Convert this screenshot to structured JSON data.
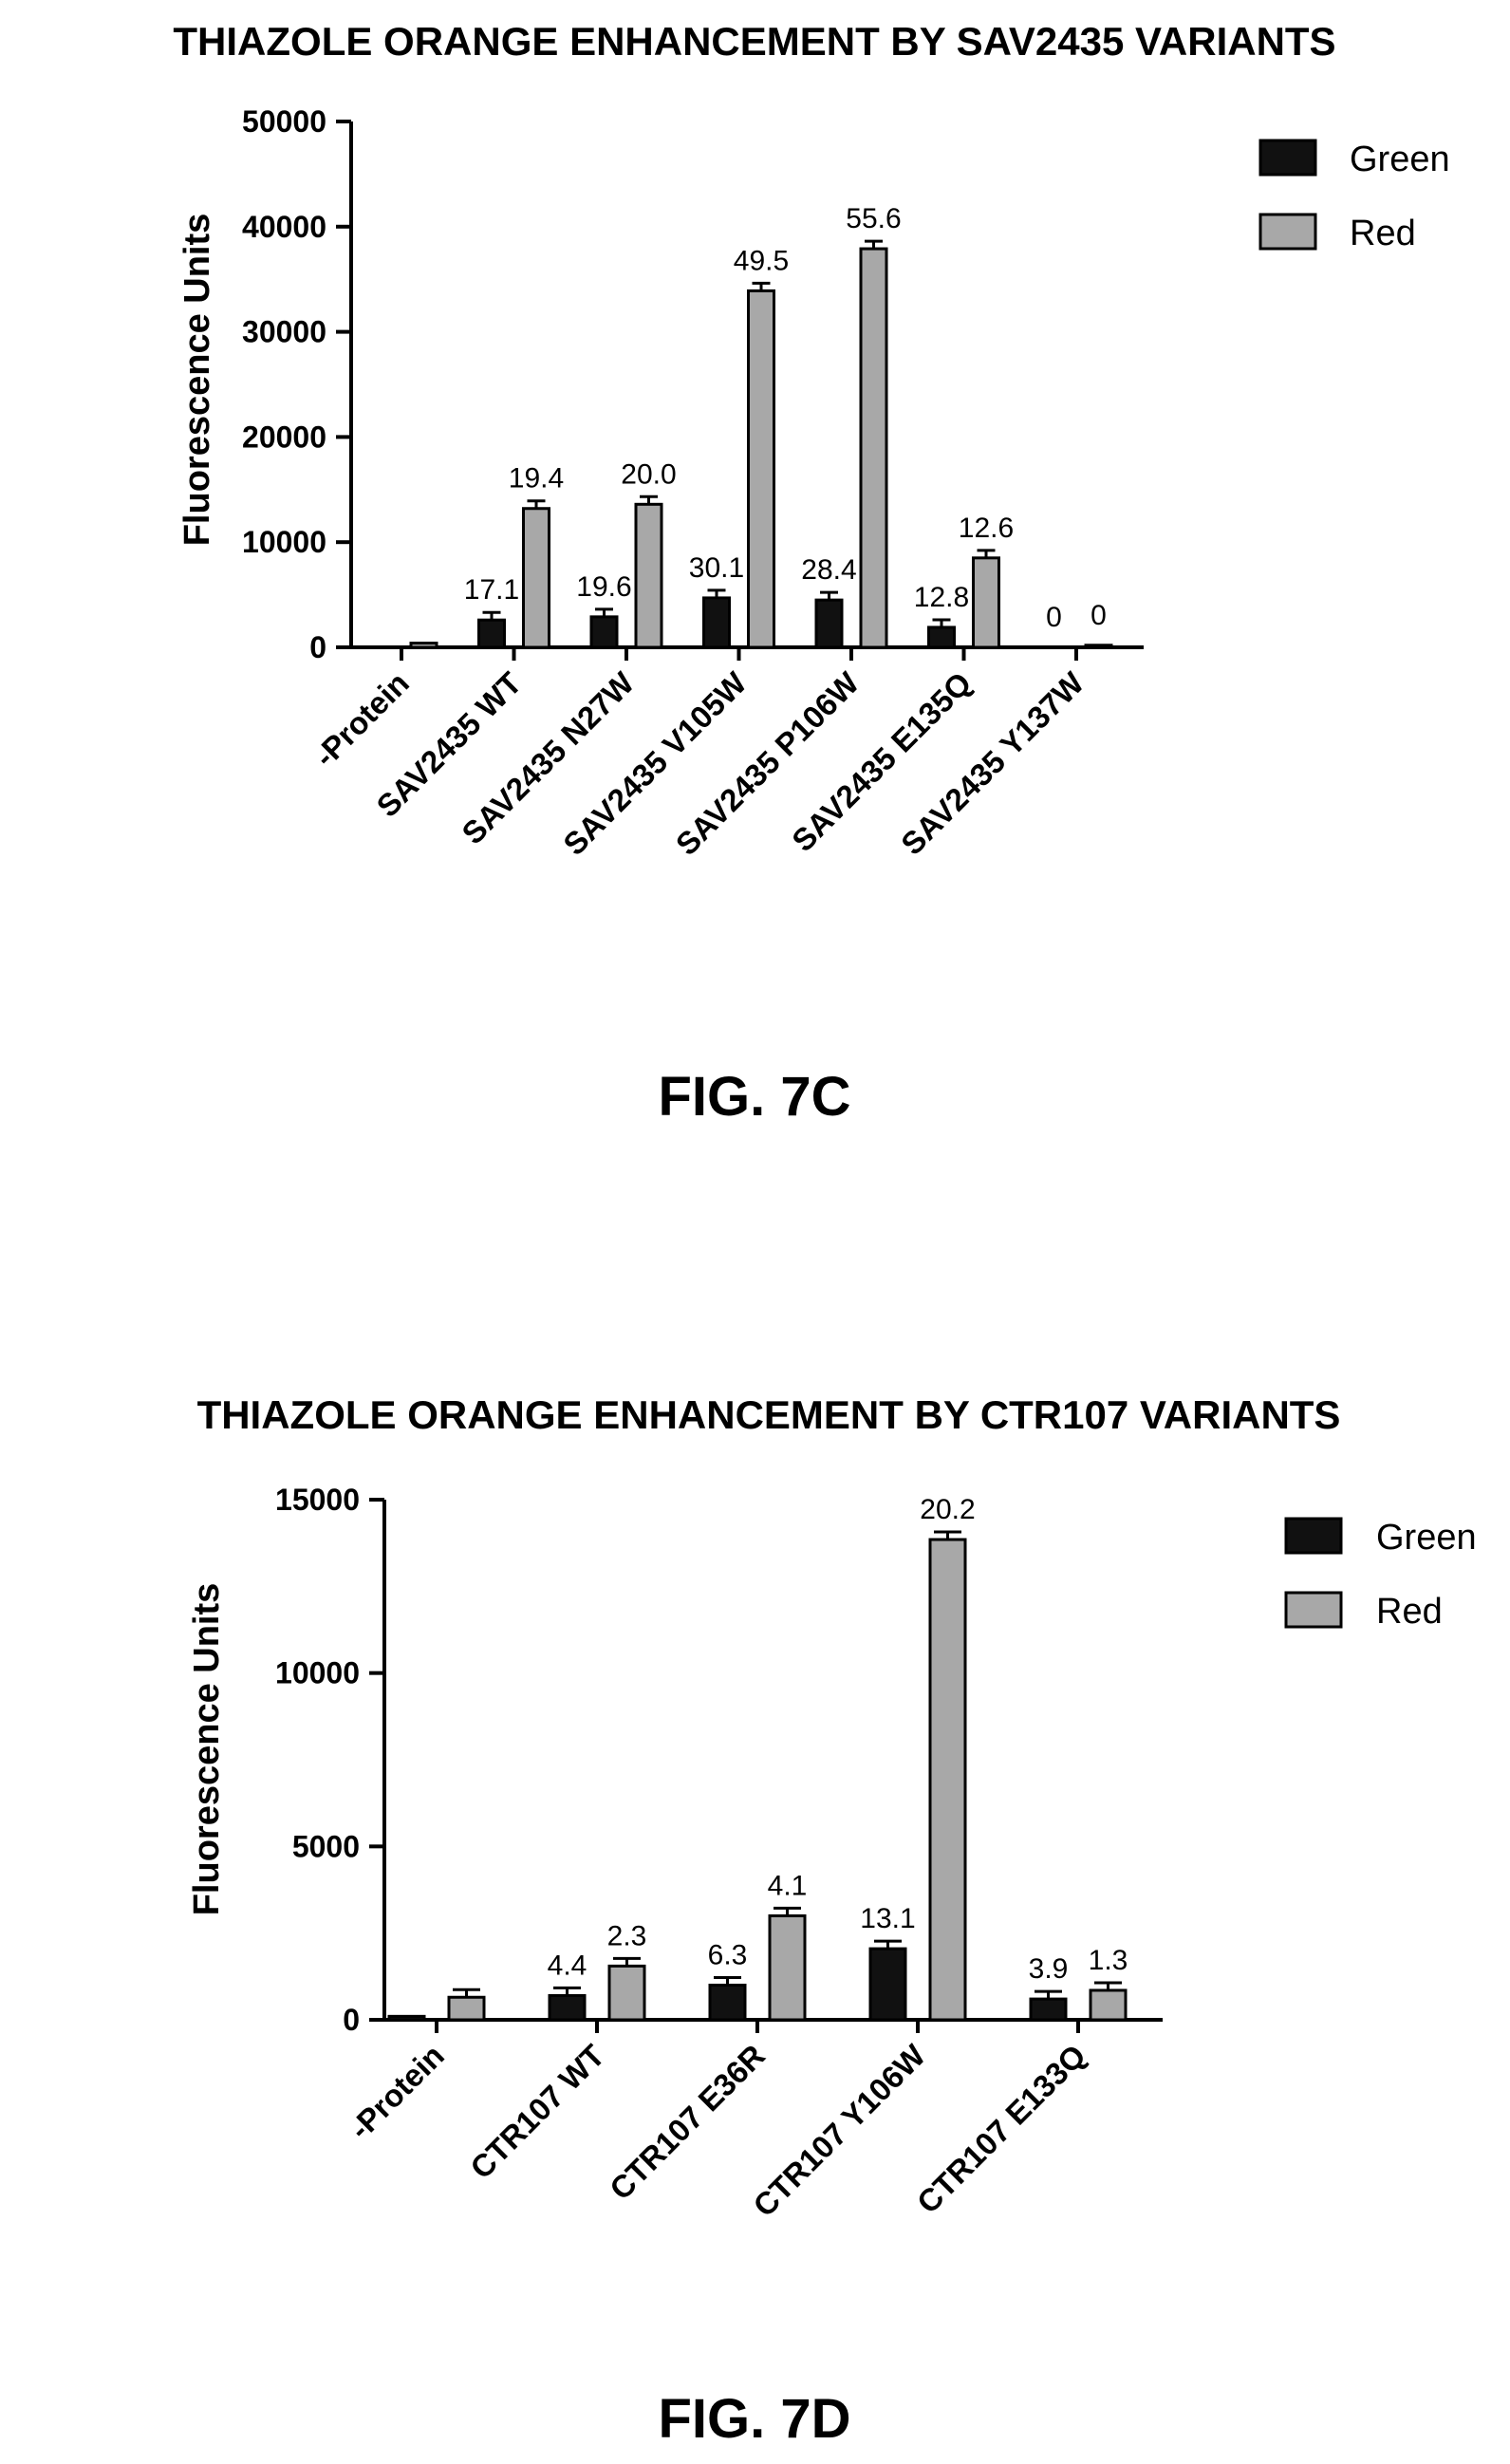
{
  "chart_data": [
    {
      "type": "bar",
      "title": "THIAZOLE ORANGE ENHANCEMENT BY SAV2435 VARIANTS",
      "figure_label": "FIG. 7C",
      "xlabel": "",
      "ylabel": "Fluorescence Units",
      "ylim": [
        0,
        50000
      ],
      "yticks": [
        "0",
        "10000",
        "20000",
        "30000",
        "40000",
        "50000"
      ],
      "categories": [
        "-Protein",
        "SAV2435 WT",
        "SAV2435 N27W",
        "SAV2435 V105W",
        "SAV2435 P106W",
        "SAV2435 E135Q",
        "SAV2435 Y137W"
      ],
      "series": [
        {
          "name": "Green",
          "color": "#111111",
          "values": [
            0,
            2600,
            2900,
            4700,
            4500,
            1900,
            0
          ],
          "labels": [
            "",
            "17.1",
            "19.6",
            "30.1",
            "28.4",
            "12.8",
            "0"
          ]
        },
        {
          "name": "Red",
          "color": "#a8a8a8",
          "values": [
            400,
            13200,
            13600,
            33900,
            37900,
            8500,
            200
          ],
          "labels": [
            "",
            "19.4",
            "20.0",
            "49.5",
            "55.6",
            "12.6",
            "0"
          ]
        }
      ],
      "legend_position": "top-right",
      "grid": false
    },
    {
      "type": "bar",
      "title": "THIAZOLE ORANGE ENHANCEMENT BY CTR107 VARIANTS",
      "figure_label": "FIG. 7D",
      "xlabel": "",
      "ylabel": "Fluorescence Units",
      "ylim": [
        0,
        15000
      ],
      "yticks": [
        "0",
        "5000",
        "10000",
        "15000"
      ],
      "categories": [
        "-Protein",
        "CTR107 WT",
        "CTR107 E36R",
        "CTR107 Y106W",
        "CTR107 E133Q"
      ],
      "series": [
        {
          "name": "Green",
          "color": "#111111",
          "values": [
            100,
            700,
            1000,
            2050,
            600
          ],
          "labels": [
            "",
            "4.4",
            "6.3",
            "13.1",
            "3.9"
          ]
        },
        {
          "name": "Red",
          "color": "#a8a8a8",
          "values": [
            650,
            1550,
            3000,
            13850,
            850
          ],
          "labels": [
            "",
            "2.3",
            "4.1",
            "20.2",
            "1.3"
          ]
        }
      ],
      "legend_position": "top-right",
      "grid": false
    }
  ]
}
